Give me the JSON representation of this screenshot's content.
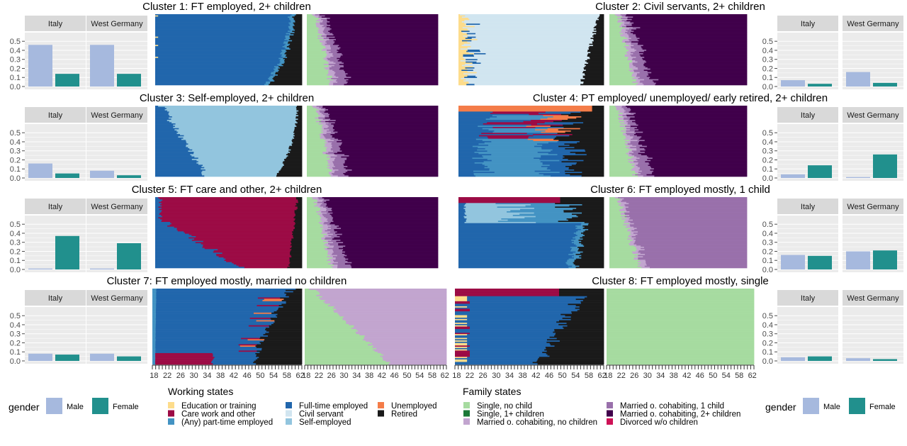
{
  "palettes": {
    "working": [
      "#fddc8b",
      "#9c0b45",
      "#4393c3",
      "#2166ac",
      "#d1e5f0",
      "#92c5de",
      "#f47c48",
      "#1a1a1a"
    ],
    "family": [
      "#a6dba0",
      "#1b7837",
      "#c2a5cf",
      "#9970ab",
      "#40004b",
      "#ce1256"
    ],
    "gender": {
      "Male": "#a6b9de",
      "Female": "#21908d"
    }
  },
  "facet_labels": [
    "Italy",
    "West Germany"
  ],
  "y_ticks": [
    "0.0",
    "0.1",
    "0.2",
    "0.3",
    "0.4",
    "0.5"
  ],
  "age_ticks": [
    "18",
    "22",
    "26",
    "30",
    "34",
    "38",
    "42",
    "46",
    "50",
    "54",
    "58",
    "62"
  ],
  "chart_data": [
    {
      "type": "bar",
      "cluster": 1,
      "title": "Cluster 1: FT employed, 2+ children",
      "categories": [
        "Italy",
        "West Germany"
      ],
      "series": [
        {
          "name": "Male",
          "values": [
            0.46,
            0.46
          ]
        },
        {
          "name": "Female",
          "values": [
            0.14,
            0.14
          ]
        }
      ],
      "ylim": [
        0,
        0.58
      ],
      "xlabel": "",
      "ylabel": ""
    },
    {
      "type": "bar",
      "cluster": 2,
      "title": "Cluster 2: Civil servants, 2+ children",
      "categories": [
        "Italy",
        "West Germany"
      ],
      "series": [
        {
          "name": "Male",
          "values": [
            0.07,
            0.16
          ]
        },
        {
          "name": "Female",
          "values": [
            0.03,
            0.04
          ]
        }
      ],
      "ylim": [
        0,
        0.58
      ],
      "xlabel": "",
      "ylabel": ""
    },
    {
      "type": "bar",
      "cluster": 3,
      "title": "Cluster 3: Self-employed, 2+ children",
      "categories": [
        "Italy",
        "West Germany"
      ],
      "series": [
        {
          "name": "Male",
          "values": [
            0.16,
            0.08
          ]
        },
        {
          "name": "Female",
          "values": [
            0.05,
            0.03
          ]
        }
      ],
      "ylim": [
        0,
        0.58
      ],
      "xlabel": "",
      "ylabel": ""
    },
    {
      "type": "bar",
      "cluster": 4,
      "title": "Cluster 4: PT employed/ unemployed/ early retired, 2+ children",
      "categories": [
        "Italy",
        "West Germany"
      ],
      "series": [
        {
          "name": "Male",
          "values": [
            0.04,
            0.01
          ]
        },
        {
          "name": "Female",
          "values": [
            0.14,
            0.26
          ]
        }
      ],
      "ylim": [
        0,
        0.58
      ],
      "xlabel": "",
      "ylabel": ""
    },
    {
      "type": "bar",
      "cluster": 5,
      "title": "Cluster 5: FT care and other, 2+ children",
      "categories": [
        "Italy",
        "West Germany"
      ],
      "series": [
        {
          "name": "Male",
          "values": [
            0.01,
            0.01
          ]
        },
        {
          "name": "Female",
          "values": [
            0.37,
            0.29
          ]
        }
      ],
      "ylim": [
        0,
        0.58
      ],
      "xlabel": "",
      "ylabel": ""
    },
    {
      "type": "bar",
      "cluster": 6,
      "title": "Cluster 6: FT employed mostly, 1 child",
      "categories": [
        "Italy",
        "West Germany"
      ],
      "series": [
        {
          "name": "Male",
          "values": [
            0.16,
            0.2
          ]
        },
        {
          "name": "Female",
          "values": [
            0.15,
            0.21
          ]
        }
      ],
      "ylim": [
        0,
        0.58
      ],
      "xlabel": "",
      "ylabel": ""
    },
    {
      "type": "bar",
      "cluster": 7,
      "title": "Cluster 7: FT employed mostly, married no children",
      "categories": [
        "Italy",
        "West Germany"
      ],
      "series": [
        {
          "name": "Male",
          "values": [
            0.08,
            0.08
          ]
        },
        {
          "name": "Female",
          "values": [
            0.07,
            0.05
          ]
        }
      ],
      "ylim": [
        0,
        0.58
      ],
      "xlabel": "",
      "ylabel": ""
    },
    {
      "type": "bar",
      "cluster": 8,
      "title": "Cluster 8: FT employed mostly, single",
      "categories": [
        "Italy",
        "West Germany"
      ],
      "series": [
        {
          "name": "Male",
          "values": [
            0.04,
            0.03
          ]
        },
        {
          "name": "Female",
          "values": [
            0.05,
            0.02
          ]
        }
      ],
      "ylim": [
        0,
        0.58
      ],
      "xlabel": "",
      "ylabel": ""
    }
  ],
  "legend": {
    "gender_title": "gender",
    "gender_items": [
      {
        "label": "Male",
        "color": "#a6b9de"
      },
      {
        "label": "Female",
        "color": "#21908d"
      }
    ],
    "working_title": "Working states",
    "working_items": [
      {
        "label": "Education or training",
        "color": "#fddc8b"
      },
      {
        "label": "Care work and other",
        "color": "#9c0b45"
      },
      {
        "label": "(Any) part-time employed",
        "color": "#4393c3"
      },
      {
        "label": "Full-time employed",
        "color": "#2166ac"
      },
      {
        "label": "Civil servant",
        "color": "#d1e5f0"
      },
      {
        "label": "Self-employed",
        "color": "#92c5de"
      },
      {
        "label": "Unemployed",
        "color": "#f47c48"
      },
      {
        "label": "Retired",
        "color": "#1a1a1a"
      }
    ],
    "family_title": "Family states",
    "family_items": [
      {
        "label": "Single, no child",
        "color": "#a6dba0"
      },
      {
        "label": "Single, 1+ children",
        "color": "#1b7837"
      },
      {
        "label": "Married o. cohabiting, no children",
        "color": "#c2a5cf"
      },
      {
        "label": "Married o. cohabiting, 1 child",
        "color": "#9970ab"
      },
      {
        "label": "Married o. cohabiting, 2+ children",
        "color": "#40004b"
      },
      {
        "label": "Divorced w/o children",
        "color": "#ce1256"
      }
    ]
  }
}
